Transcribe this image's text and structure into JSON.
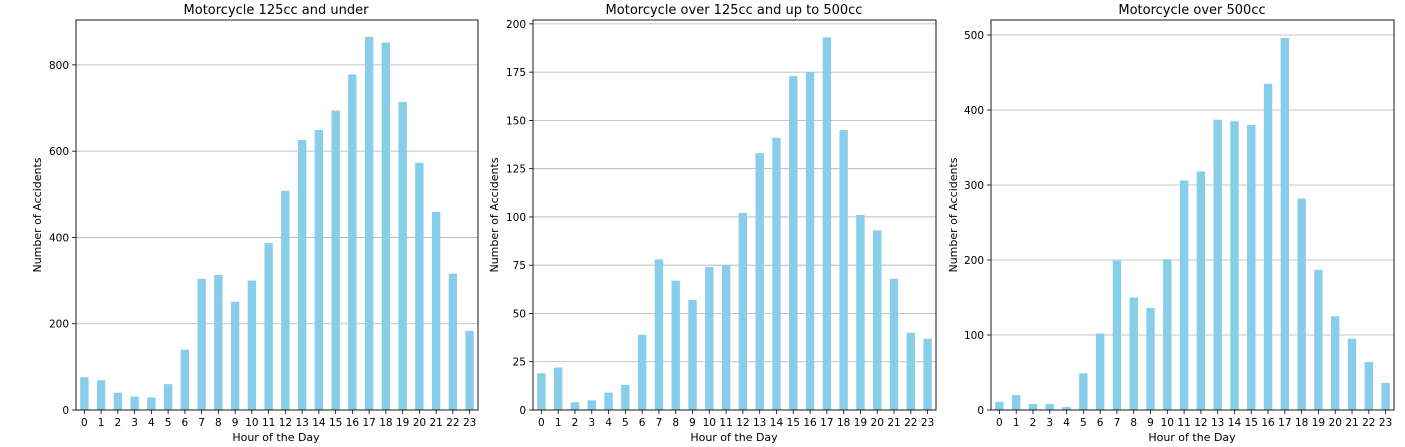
{
  "chart_data": [
    {
      "type": "bar",
      "title": "Motorcycle 125cc and under",
      "xlabel": "Hour of the Day",
      "ylabel": "Number of Accidents",
      "categories": [
        "0",
        "1",
        "2",
        "3",
        "4",
        "5",
        "6",
        "7",
        "8",
        "9",
        "10",
        "11",
        "12",
        "13",
        "14",
        "15",
        "16",
        "17",
        "18",
        "19",
        "20",
        "21",
        "22",
        "23"
      ],
      "values": [
        76,
        69,
        40,
        31,
        29,
        60,
        140,
        304,
        313,
        251,
        300,
        387,
        508,
        626,
        649,
        694,
        778,
        865,
        852,
        714,
        573,
        459,
        316,
        183
      ],
      "ylim": [
        0,
        904
      ],
      "yticks": [
        0,
        200,
        400,
        600,
        800
      ],
      "grid": "y",
      "color": "#87ceeb"
    },
    {
      "type": "bar",
      "title": "Motorcycle over 125cc and up to 500cc",
      "xlabel": "Hour of the Day",
      "ylabel": "Number of Accidents",
      "categories": [
        "0",
        "1",
        "2",
        "3",
        "4",
        "5",
        "6",
        "7",
        "8",
        "9",
        "10",
        "11",
        "12",
        "13",
        "14",
        "15",
        "16",
        "17",
        "18",
        "19",
        "20",
        "21",
        "22",
        "23"
      ],
      "values": [
        19,
        22,
        4,
        5,
        9,
        13,
        39,
        78,
        67,
        57,
        74,
        75,
        102,
        133,
        141,
        173,
        175,
        193,
        145,
        101,
        93,
        68,
        40,
        37
      ],
      "ylim": [
        0,
        202
      ],
      "yticks": [
        0,
        25,
        50,
        75,
        100,
        125,
        150,
        175,
        200
      ],
      "grid": "y",
      "color": "#87ceeb"
    },
    {
      "type": "bar",
      "title": "Motorcycle over 500cc",
      "xlabel": "Hour of the Day",
      "ylabel": "Number of Accidents",
      "categories": [
        "0",
        "1",
        "2",
        "3",
        "4",
        "5",
        "6",
        "7",
        "8",
        "9",
        "10",
        "11",
        "12",
        "13",
        "14",
        "15",
        "16",
        "17",
        "18",
        "19",
        "20",
        "21",
        "22",
        "23"
      ],
      "values": [
        11,
        20,
        8,
        8,
        4,
        49,
        102,
        199,
        150,
        136,
        201,
        306,
        318,
        387,
        385,
        380,
        435,
        496,
        282,
        187,
        125,
        95,
        64,
        36
      ],
      "ylim": [
        0,
        520
      ],
      "yticks": [
        0,
        100,
        200,
        300,
        400,
        500
      ],
      "grid": "y",
      "color": "#87ceeb"
    }
  ]
}
